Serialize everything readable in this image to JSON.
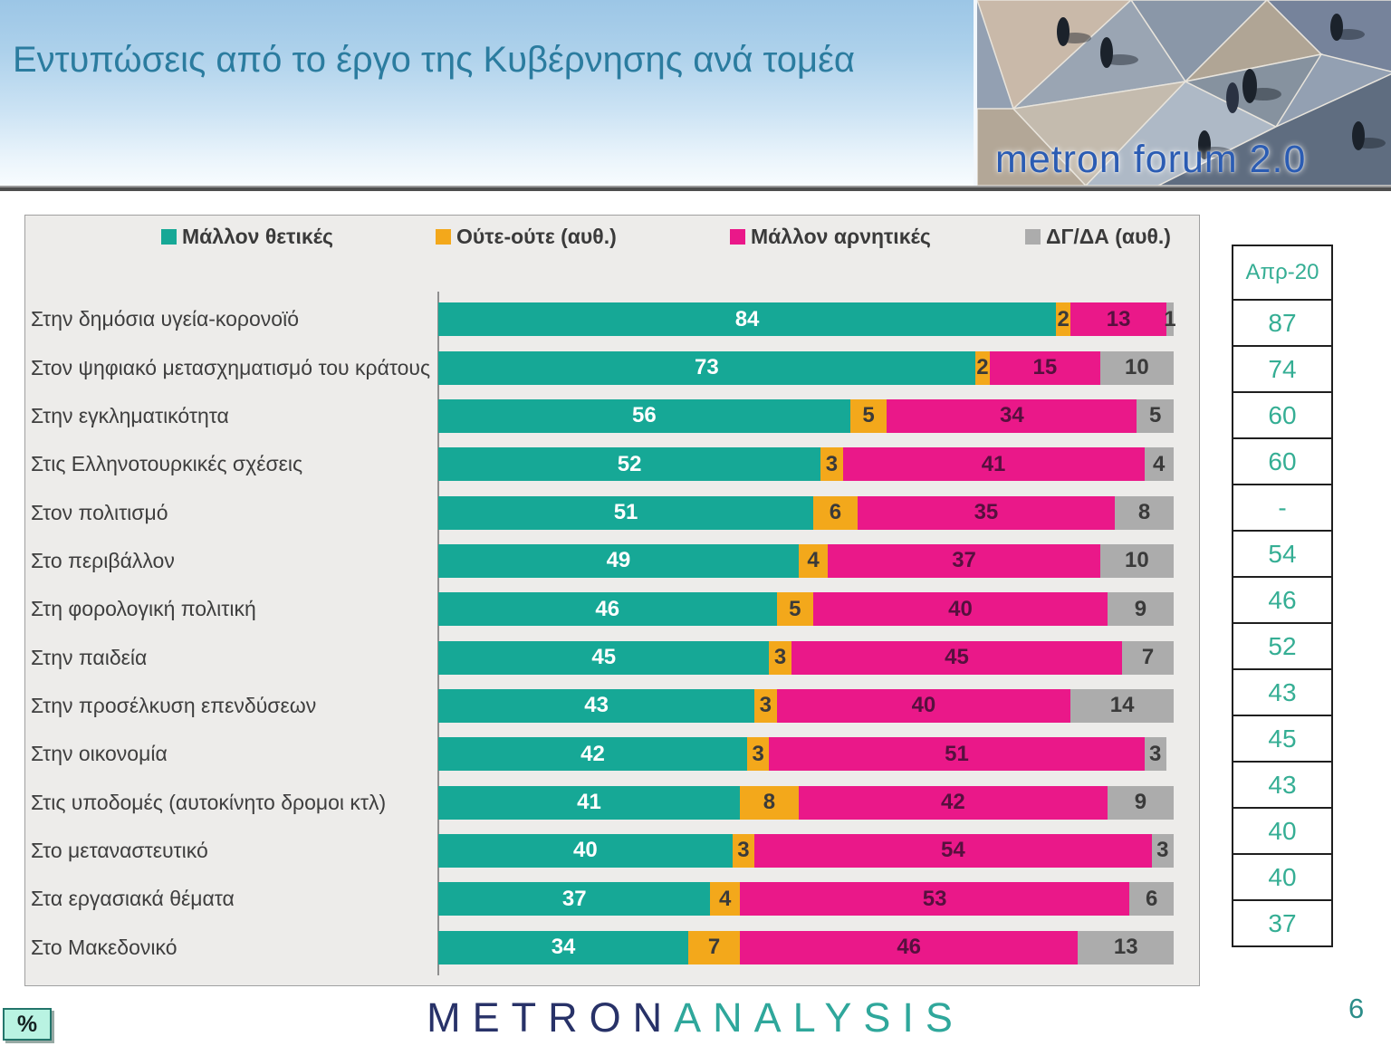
{
  "header": {
    "title": "Εντυπώσεις από το έργο της Κυβέρνησης ανά τομέα",
    "photo_logo_text": "metron forum 2.0"
  },
  "chart_data": {
    "type": "bar",
    "orientation": "horizontal-stacked",
    "value_unit": "%",
    "xlim": [
      0,
      100
    ],
    "grid": false,
    "legend_position": "top",
    "categories": [
      "Στην δημόσια υγεία-κορονοϊό",
      "Στον ψηφιακό μετασχηματισμό του κράτους",
      "Στην εγκληματικότητα",
      "Στις Ελληνοτουρκικές σχέσεις",
      "Στον πολιτισμό",
      "Στο περιβάλλον",
      "Στη φορολογική πολιτική",
      "Στην παιδεία",
      "Στην προσέλκυση επενδύσεων",
      "Στην οικονομία",
      "Στις υποδομές (αυτοκίνητο δρομοι κτλ)",
      "Στο μεταναστευτικό",
      "Στα εργασιακά θέματα",
      "Στο Μακεδονικό"
    ],
    "series": [
      {
        "name": "Μάλλον θετικές",
        "color": "#16A896",
        "label_color": "#FFFFFF",
        "values": [
          84,
          73,
          56,
          52,
          51,
          49,
          46,
          45,
          43,
          42,
          41,
          40,
          37,
          34
        ]
      },
      {
        "name": "Ούτε-ούτε  (αυθ.)",
        "color": "#F3A81B",
        "label_color": "#3A3A3A",
        "values": [
          2,
          2,
          5,
          3,
          6,
          4,
          5,
          3,
          3,
          3,
          8,
          3,
          4,
          7
        ]
      },
      {
        "name": "Μάλλον αρνητικές",
        "color": "#EA1889",
        "label_color": "#56103E",
        "values": [
          13,
          15,
          34,
          41,
          35,
          37,
          40,
          45,
          40,
          51,
          42,
          54,
          53,
          46
        ]
      },
      {
        "name": "ΔΓ/ΔΑ (αυθ.)",
        "color": "#ACACAC",
        "label_color": "#3A3A3A",
        "values": [
          1,
          10,
          5,
          4,
          8,
          10,
          9,
          7,
          14,
          3,
          9,
          3,
          6,
          13
        ]
      }
    ],
    "comparison_column": {
      "header": "Απρ-20",
      "values": [
        "87",
        "74",
        "60",
        "60",
        "-",
        "54",
        "46",
        "52",
        "43",
        "45",
        "43",
        "40",
        "40",
        "37"
      ]
    }
  },
  "footer": {
    "unit_badge": "%",
    "brand_primary": "METRON",
    "brand_secondary": "ANALYSIS",
    "page_number": "6"
  }
}
